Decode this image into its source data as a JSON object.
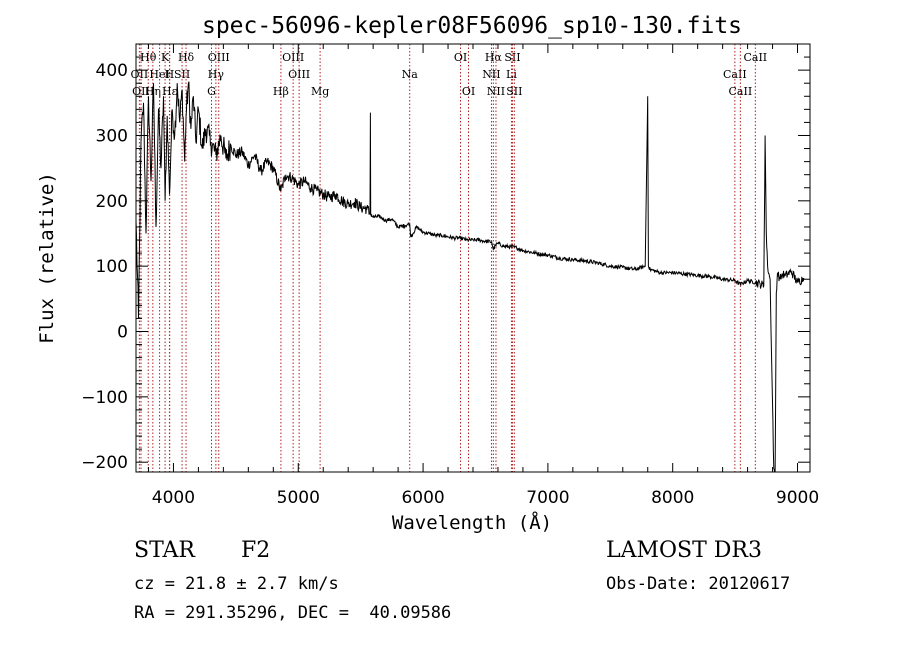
{
  "chart_data": {
    "type": "line",
    "title": "spec-56096-kepler08F56096_sp10-130.fits",
    "xlabel": "Wavelength (Å)",
    "ylabel": "Flux (relative)",
    "xlim": [
      3700,
      9100
    ],
    "ylim": [
      -215,
      440
    ],
    "x_ticks": [
      4000,
      5000,
      6000,
      7000,
      8000,
      9000
    ],
    "x_tick_labels": [
      "4000",
      "5000",
      "6000",
      "7000",
      "8000",
      "9000"
    ],
    "y_ticks": [
      -200,
      -100,
      0,
      100,
      200,
      300,
      400
    ],
    "y_tick_labels": [
      "-200",
      "-100",
      "0",
      "100",
      "200",
      "300",
      "400"
    ],
    "line_color": "#000000",
    "marker_color": "#b22222",
    "spectrum": {
      "name": "flux",
      "x": [
        3700,
        3720,
        3740,
        3760,
        3780,
        3800,
        3820,
        3840,
        3860,
        3880,
        3900,
        3920,
        3933,
        3950,
        3968,
        3990,
        4010,
        4030,
        4050,
        4070,
        4090,
        4101,
        4120,
        4140,
        4160,
        4180,
        4200,
        4230,
        4260,
        4300,
        4340,
        4380,
        4420,
        4460,
        4500,
        4550,
        4600,
        4650,
        4700,
        4750,
        4800,
        4861,
        4900,
        4950,
        5000,
        5050,
        5100,
        5150,
        5200,
        5250,
        5300,
        5350,
        5400,
        5450,
        5500,
        5550,
        5575,
        5578,
        5580,
        5600,
        5650,
        5700,
        5750,
        5800,
        5850,
        5893,
        5900,
        5950,
        6000,
        6050,
        6100,
        6150,
        6200,
        6250,
        6300,
        6350,
        6400,
        6450,
        6500,
        6550,
        6563,
        6580,
        6600,
        6650,
        6700,
        6750,
        6800,
        6850,
        6900,
        6950,
        7000,
        7100,
        7200,
        7300,
        7400,
        7500,
        7600,
        7700,
        7780,
        7800,
        7805,
        7810,
        7820,
        7900,
        8000,
        8100,
        8200,
        8300,
        8400,
        8500,
        8542,
        8600,
        8662,
        8700,
        8730,
        8740,
        8750,
        8760,
        8780,
        8810,
        8820,
        8830,
        8840,
        8860,
        8880,
        8900,
        8950,
        9000,
        9050
      ],
      "y": [
        170,
        20,
        290,
        350,
        150,
        360,
        230,
        380,
        160,
        340,
        250,
        360,
        200,
        330,
        210,
        340,
        300,
        380,
        320,
        370,
        260,
        330,
        380,
        310,
        360,
        290,
        340,
        280,
        310,
        290,
        270,
        300,
        265,
        285,
        270,
        275,
        255,
        270,
        245,
        260,
        250,
        215,
        240,
        235,
        225,
        230,
        220,
        215,
        210,
        205,
        210,
        200,
        195,
        198,
        190,
        188,
        180,
        335,
        180,
        175,
        176,
        170,
        172,
        160,
        162,
        165,
        145,
        160,
        152,
        150,
        147,
        147,
        145,
        143,
        143,
        140,
        140,
        140,
        138,
        137,
        125,
        132,
        135,
        130,
        130,
        128,
        124,
        122,
        120,
        118,
        117,
        112,
        110,
        108,
        105,
        100,
        98,
        95,
        100,
        360,
        100,
        97,
        95,
        90,
        90,
        88,
        86,
        84,
        80,
        78,
        72,
        78,
        75,
        73,
        70,
        300,
        150,
        100,
        80,
        -210,
        -230,
        60,
        90,
        80,
        88,
        85,
        92,
        75,
        82
      ]
    },
    "line_markers": [
      {
        "label": "Hθ",
        "x": 3798,
        "row": 0
      },
      {
        "label": "OII",
        "x": 3727,
        "row": 1
      },
      {
        "label": "OII",
        "x": 3740,
        "row": 2
      },
      {
        "label": "Hη",
        "x": 3835,
        "row": 2
      },
      {
        "label": "HeI",
        "x": 3889,
        "row": 1
      },
      {
        "label": "SII",
        "x": 4069,
        "row": 1
      },
      {
        "label": "K",
        "x": 3933,
        "row": 0
      },
      {
        "label": "H",
        "x": 3968,
        "row": 1
      },
      {
        "label": "Hε",
        "x": 3970,
        "row": 2
      },
      {
        "label": "Hδ",
        "x": 4101,
        "row": 0
      },
      {
        "label": "OIII",
        "x": 4363,
        "row": 0
      },
      {
        "label": "Hγ",
        "x": 4340,
        "row": 1
      },
      {
        "label": "G",
        "x": 4305,
        "row": 2
      },
      {
        "label": "Hβ",
        "x": 4861,
        "row": 2
      },
      {
        "label": "OIII",
        "x": 4959,
        "row": 0
      },
      {
        "label": "OIII",
        "x": 5007,
        "row": 1
      },
      {
        "label": "Mg",
        "x": 5175,
        "row": 2
      },
      {
        "label": "Na",
        "x": 5893,
        "row": 1
      },
      {
        "label": "OI",
        "x": 6300,
        "row": 0
      },
      {
        "label": "OI",
        "x": 6364,
        "row": 2
      },
      {
        "label": "Hα",
        "x": 6563,
        "row": 0
      },
      {
        "label": "NII",
        "x": 6548,
        "row": 1
      },
      {
        "label": "NII",
        "x": 6584,
        "row": 2
      },
      {
        "label": "SII",
        "x": 6716,
        "row": 0
      },
      {
        "label": "Li",
        "x": 6708,
        "row": 1
      },
      {
        "label": "SII",
        "x": 6731,
        "row": 2
      },
      {
        "label": "CaII",
        "x": 8662,
        "row": 0
      },
      {
        "label": "CaII",
        "x": 8498,
        "row": 1
      },
      {
        "label": "CaII",
        "x": 8542,
        "row": 2
      }
    ]
  },
  "footer": {
    "object_class": "STAR",
    "subclass": "F2",
    "survey": "LAMOST DR3",
    "redshift": "cz = 21.8 ± 2.7 km/s",
    "obs_date": "Obs-Date: 20120617",
    "coordinates": "RA = 291.35296, DEC =  40.09586"
  }
}
